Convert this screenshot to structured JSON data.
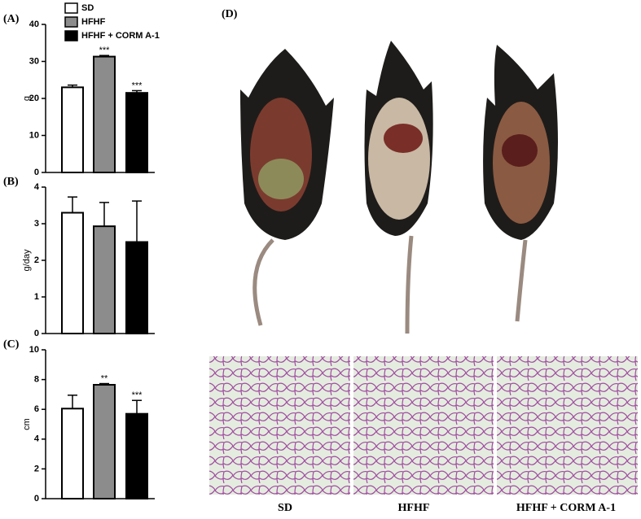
{
  "chart_data": [
    {
      "type": "bar",
      "panel_label": "(A)",
      "y_label": "g",
      "categories": [
        null,
        null,
        null
      ],
      "values": [
        23,
        31.3,
        21.5
      ],
      "errors": [
        0.6,
        0.3,
        0.6
      ],
      "colors": [
        "#ffffff",
        "#8c8c8c",
        "#000000"
      ],
      "significance": [
        null,
        "***",
        "***"
      ],
      "legend": [
        "SD",
        "HFHF",
        "HFHF + CORM A-1"
      ],
      "ylim": [
        0,
        40
      ],
      "yticks": [
        0,
        10,
        20,
        30,
        40
      ]
    },
    {
      "type": "bar",
      "panel_label": "(B)",
      "y_label": "g/day",
      "categories": [
        null,
        null,
        null
      ],
      "values": [
        3.3,
        2.93,
        2.5
      ],
      "errors": [
        0.43,
        0.65,
        1.12
      ],
      "colors": [
        "#ffffff",
        "#8c8c8c",
        "#000000"
      ],
      "ylim": [
        0,
        4
      ],
      "yticks": [
        0,
        1,
        2,
        3,
        4
      ]
    },
    {
      "type": "bar",
      "panel_label": "(C)",
      "y_label": "cm",
      "categories": [
        null,
        null,
        null
      ],
      "values": [
        6.05,
        7.65,
        5.7
      ],
      "errors": [
        0.9,
        0.08,
        0.9
      ],
      "colors": [
        "#ffffff",
        "#8c8c8c",
        "#000000"
      ],
      "significance": [
        null,
        "**",
        "***"
      ],
      "ylim": [
        0,
        10
      ],
      "yticks": [
        0,
        2,
        4,
        6,
        8,
        10
      ]
    }
  ],
  "photo_panel": {
    "label": "(D)",
    "captions": [
      "SD",
      "HFHF",
      "HFHF + CORM A-1"
    ]
  }
}
